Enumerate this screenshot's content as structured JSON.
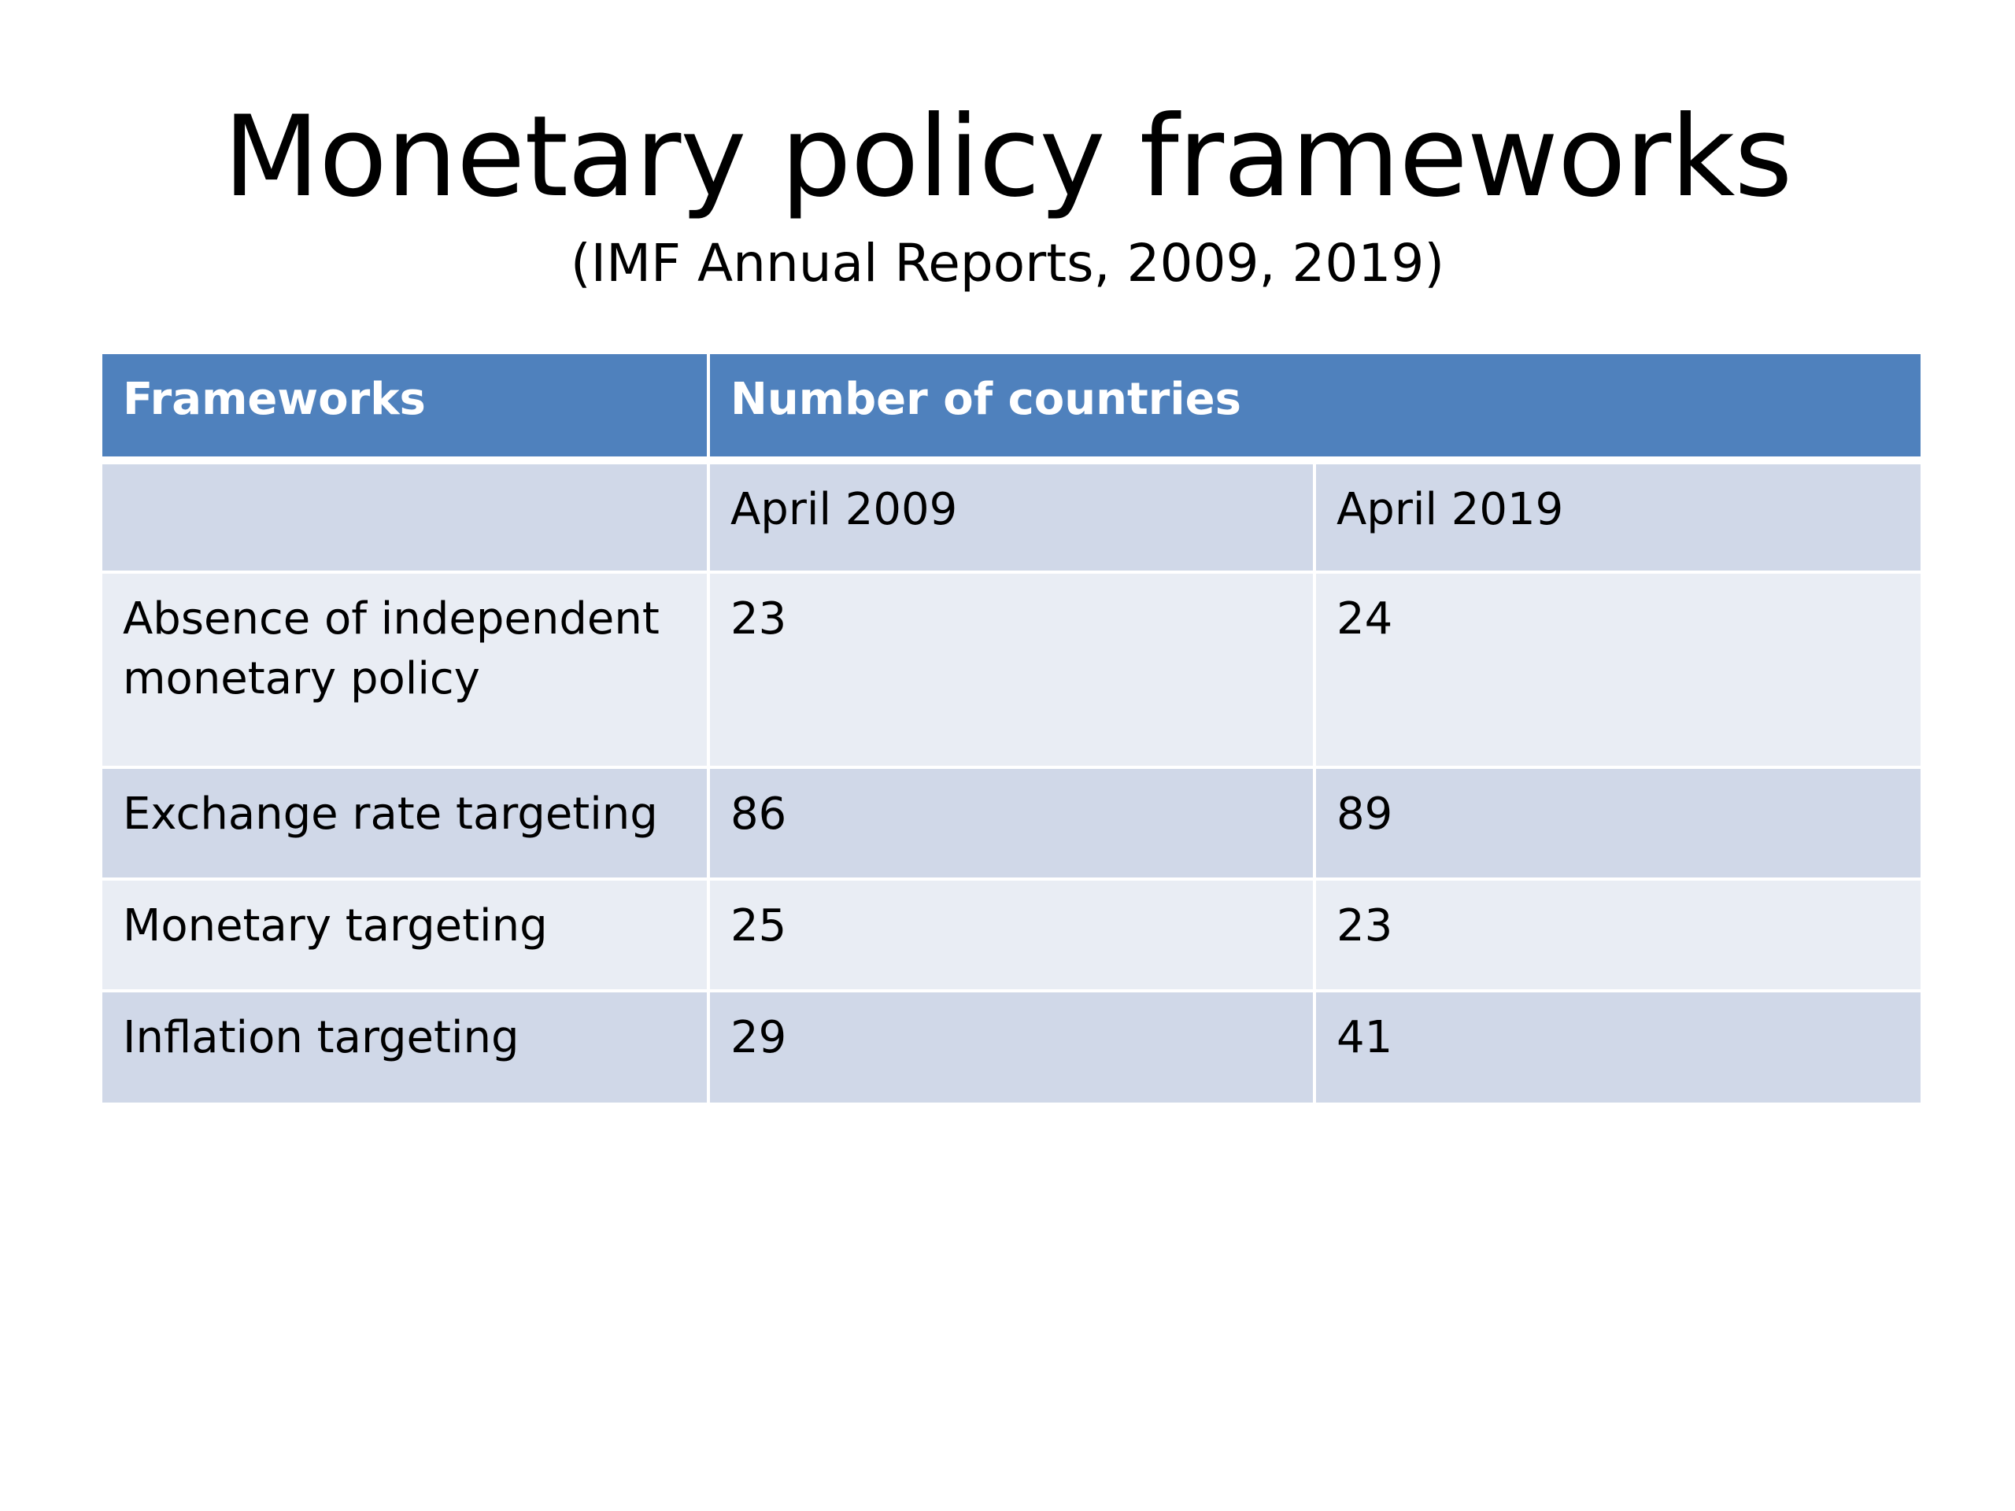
{
  "slide": {
    "title": "Monetary policy frameworks",
    "subtitle": "(IMF Annual Reports, 2009, 2019)"
  },
  "table": {
    "header": {
      "col1": "Frameworks",
      "col2": "Number of countries"
    },
    "subheader": {
      "col1": "",
      "col2": "April 2009",
      "col3": "April 2019"
    },
    "rows": [
      {
        "framework": "Absence of independent monetary policy",
        "april_2009": "23",
        "april_2019": "24"
      },
      {
        "framework": "Exchange rate targeting",
        "april_2009": "86",
        "april_2019": "89"
      },
      {
        "framework": "Monetary targeting",
        "april_2009": "25",
        "april_2019": "23"
      },
      {
        "framework": "Inflation targeting",
        "april_2009": "29",
        "april_2019": "41"
      }
    ]
  },
  "colors": {
    "header_background": "#4f81bd",
    "header_text": "#ffffff",
    "band_dark": "#d0d8e8",
    "band_light": "#e9edf4"
  }
}
